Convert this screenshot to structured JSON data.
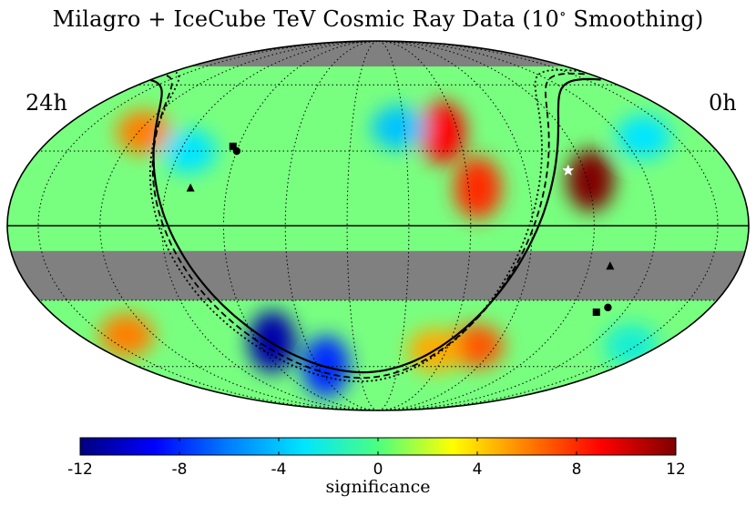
{
  "title_main": "Milagro + IceCube TeV Cosmic Ray Data (10",
  "title_sup": "∘",
  "title_tail": " Smoothing)",
  "ra_left_label": "24h",
  "ra_right_label": "0h",
  "colorbar": {
    "label": "significance",
    "min": -12,
    "max": 12,
    "ticks": [
      "-12",
      "-8",
      "-4",
      "0",
      "4",
      "8",
      "12"
    ],
    "tick_values": [
      -12,
      -8,
      -4,
      0,
      4,
      8,
      12
    ]
  },
  "colors": {
    "no_coverage": "#808080",
    "colormap": [
      "#00007f",
      "#0000ff",
      "#007fff",
      "#00e5ff",
      "#4cff7f",
      "#ffff00",
      "#ff7f00",
      "#ff0000",
      "#7f0000"
    ]
  },
  "chart_data": {
    "type": "heatmap",
    "projection": "mollweide",
    "coordinate_system": "equatorial",
    "ra_range_hours": [
      24,
      0
    ],
    "dec_range_deg": [
      -90,
      90
    ],
    "value_range": [
      -12,
      12
    ],
    "unmeasured_dec_bands_deg": [
      [
        -30,
        -10
      ],
      [
        70,
        90
      ]
    ],
    "features": [
      {
        "ra_h": 4.9,
        "dec_deg": 18,
        "significance": 12
      },
      {
        "ra_h": 9.6,
        "dec_deg": 38,
        "significance": 9
      },
      {
        "ra_h": 8.7,
        "dec_deg": 15,
        "significance": 8
      },
      {
        "ra_h": 7.8,
        "dec_deg": -50,
        "significance": 7
      },
      {
        "ra_h": 9.5,
        "dec_deg": -52,
        "significance": 5
      },
      {
        "ra_h": 16.4,
        "dec_deg": -48,
        "significance": -11
      },
      {
        "ra_h": 14.6,
        "dec_deg": -60,
        "significance": -8
      },
      {
        "ra_h": 11.2,
        "dec_deg": 40,
        "significance": -4
      },
      {
        "ra_h": 20.8,
        "dec_deg": 38,
        "significance": 6
      },
      {
        "ra_h": 22.1,
        "dec_deg": -45,
        "significance": 6
      },
      {
        "ra_h": 18.7,
        "dec_deg": 30,
        "significance": -3
      },
      {
        "ra_h": 2.2,
        "dec_deg": 36,
        "significance": -3
      },
      {
        "ra_h": 1.2,
        "dec_deg": -50,
        "significance": -2
      }
    ],
    "markers": [
      {
        "name": "star",
        "ra_h": 5.55,
        "dec_deg": 22
      },
      {
        "name": "square",
        "ra_h": 17.2,
        "dec_deg": 32
      },
      {
        "name": "circle",
        "ra_h": 17.0,
        "dec_deg": 30
      },
      {
        "name": "triangle",
        "ra_h": 18.2,
        "dec_deg": 15
      },
      {
        "name": "square",
        "ra_h": 4.0,
        "dec_deg": -35
      },
      {
        "name": "circle",
        "ra_h": 3.7,
        "dec_deg": -33
      },
      {
        "name": "triangle",
        "ra_h": 4.3,
        "dec_deg": -16
      }
    ],
    "curves": [
      {
        "name": "solid",
        "style": "solid"
      },
      {
        "name": "dashed",
        "style": "dashed"
      },
      {
        "name": "dotted",
        "style": "dotted"
      }
    ],
    "grid": "on"
  }
}
